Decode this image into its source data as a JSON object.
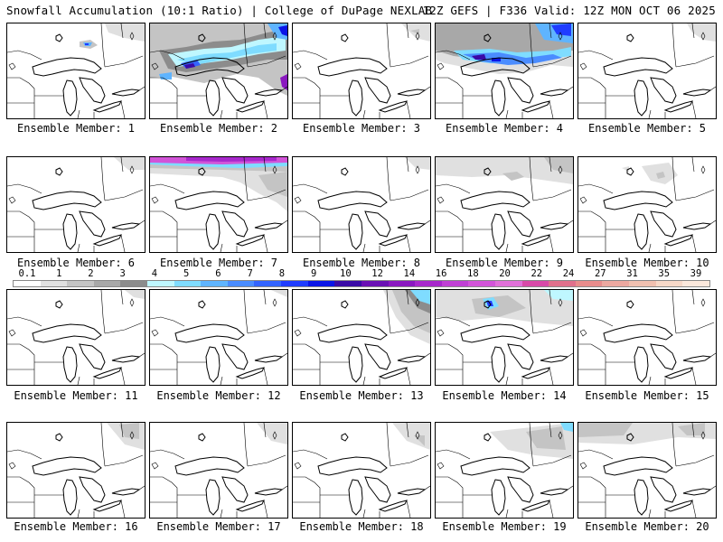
{
  "header": {
    "left": "Snowfall Accumulation (10:1 Ratio) | College of DuPage NEXLAB",
    "right": "12Z GEFS | F336 Valid: 12Z MON OCT 06 2025"
  },
  "colorbar": {
    "ticks": [
      "0.1",
      "1",
      "2",
      "3",
      "4",
      "5",
      "6",
      "7",
      "8",
      "9",
      "10",
      "12",
      "14",
      "16",
      "18",
      "20",
      "22",
      "24",
      "27",
      "31",
      "35",
      "39"
    ],
    "colors": [
      "#ffffff",
      "#e0e0e0",
      "#c4c4c4",
      "#a8a8a8",
      "#8c8c8c",
      "#bff7ff",
      "#7fdcff",
      "#5fb4ff",
      "#4a8cff",
      "#3364ff",
      "#1f3cff",
      "#0a14e6",
      "#3a0aa6",
      "#6a10b4",
      "#8a18c0",
      "#a828cc",
      "#c040d4",
      "#d254d8",
      "#e070d8",
      "#d84aa8",
      "#e0708c",
      "#e88c8c",
      "#eca8a0",
      "#f0c0b0",
      "#f6d8c8",
      "#fbe8dc"
    ]
  },
  "members": [
    {
      "label": "Ensemble Member: 1"
    },
    {
      "label": "Ensemble Member: 2"
    },
    {
      "label": "Ensemble Member: 3"
    },
    {
      "label": "Ensemble Member: 4"
    },
    {
      "label": "Ensemble Member: 5"
    },
    {
      "label": "Ensemble Member: 6"
    },
    {
      "label": "Ensemble Member: 7"
    },
    {
      "label": "Ensemble Member: 8"
    },
    {
      "label": "Ensemble Member: 9"
    },
    {
      "label": "Ensemble Member: 10"
    },
    {
      "label": "Ensemble Member: 11"
    },
    {
      "label": "Ensemble Member: 12"
    },
    {
      "label": "Ensemble Member: 13"
    },
    {
      "label": "Ensemble Member: 14"
    },
    {
      "label": "Ensemble Member: 15"
    },
    {
      "label": "Ensemble Member: 16"
    },
    {
      "label": "Ensemble Member: 17"
    },
    {
      "label": "Ensemble Member: 18"
    },
    {
      "label": "Ensemble Member: 19"
    },
    {
      "label": "Ensemble Member: 20"
    }
  ]
}
